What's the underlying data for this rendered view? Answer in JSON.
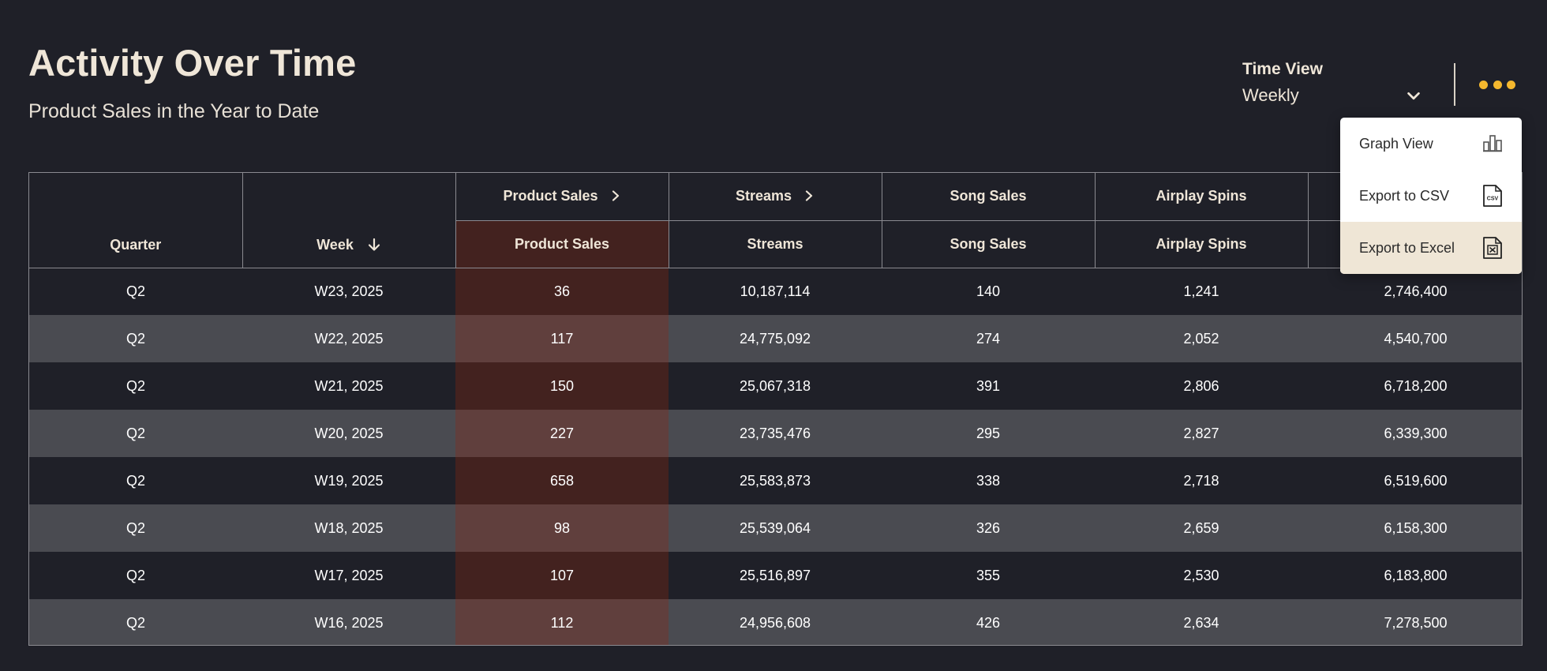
{
  "header": {
    "title": "Activity Over Time",
    "subtitle": "Product Sales in the Year to Date"
  },
  "time_view": {
    "label": "Time View",
    "value": "Weekly",
    "icon": "chevron-down-icon"
  },
  "more_menu": {
    "icon": "more-horizontal-icon",
    "accent_color": "#f5b82e",
    "items": [
      {
        "label": "Graph View",
        "icon": "bar-chart-icon"
      },
      {
        "label": "Export to CSV",
        "icon": "csv-file-icon"
      },
      {
        "label": "Export to Excel",
        "icon": "excel-file-icon"
      }
    ]
  },
  "table": {
    "group_headers": [
      "Product Sales",
      "Streams",
      "Song Sales",
      "Airplay Spins",
      ""
    ],
    "columns": [
      "Quarter",
      "Week",
      "Product Sales",
      "Streams",
      "Song Sales",
      "Airplay Spins",
      ""
    ],
    "highlight_color": "#43221f",
    "rows": [
      [
        "Q2",
        "W23, 2025",
        "36",
        "10,187,114",
        "140",
        "1,241",
        "2,746,400"
      ],
      [
        "Q2",
        "W22, 2025",
        "117",
        "24,775,092",
        "274",
        "2,052",
        "4,540,700"
      ],
      [
        "Q2",
        "W21, 2025",
        "150",
        "25,067,318",
        "391",
        "2,806",
        "6,718,200"
      ],
      [
        "Q2",
        "W20, 2025",
        "227",
        "23,735,476",
        "295",
        "2,827",
        "6,339,300"
      ],
      [
        "Q2",
        "W19, 2025",
        "658",
        "25,583,873",
        "338",
        "2,718",
        "6,519,600"
      ],
      [
        "Q2",
        "W18, 2025",
        "98",
        "25,539,064",
        "326",
        "2,659",
        "6,158,300"
      ],
      [
        "Q2",
        "W17, 2025",
        "107",
        "25,516,897",
        "355",
        "2,530",
        "6,183,800"
      ],
      [
        "Q2",
        "W16, 2025",
        "112",
        "24,956,608",
        "426",
        "2,634",
        "7,278,500"
      ]
    ]
  }
}
